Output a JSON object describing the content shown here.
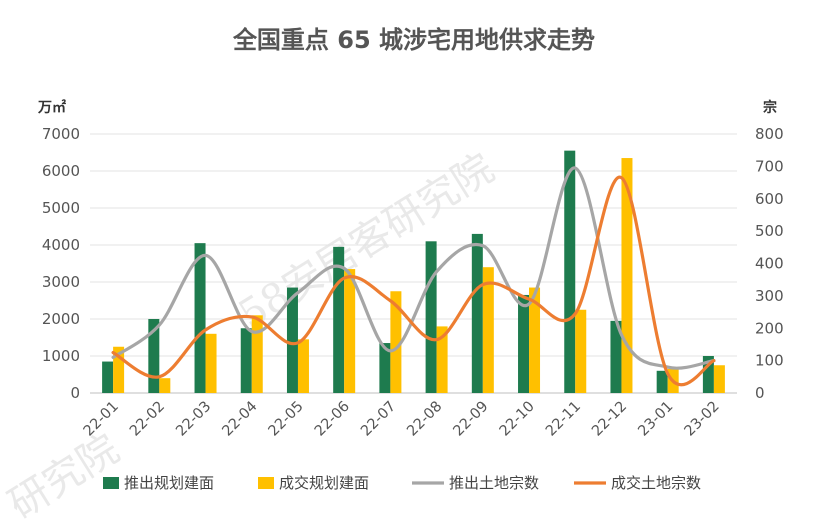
{
  "chart_data": {
    "type": "bar",
    "title": "全国重点 65 城涉宅用地供求走势",
    "categories": [
      "22-01",
      "22-02",
      "22-03",
      "22-04",
      "22-05",
      "22-06",
      "22-07",
      "22-08",
      "22-09",
      "22-10",
      "22-11",
      "22-12",
      "23-01",
      "23-02"
    ],
    "y_left": {
      "label": "万㎡",
      "ylim": [
        0,
        7000
      ],
      "ticks": [
        0,
        1000,
        2000,
        3000,
        4000,
        5000,
        6000,
        7000
      ]
    },
    "y_right": {
      "label": "宗",
      "ylim": [
        0,
        800
      ],
      "ticks": [
        0,
        100,
        200,
        300,
        400,
        500,
        600,
        700,
        800
      ]
    },
    "series": [
      {
        "name": "推出规划建面",
        "kind": "bar",
        "axis": "left",
        "color": "#1e7b4e",
        "values": [
          850,
          2000,
          4050,
          1750,
          2850,
          3950,
          1350,
          4100,
          4300,
          2650,
          6550,
          1950,
          600,
          1000
        ]
      },
      {
        "name": "成交规划建面",
        "kind": "bar",
        "axis": "left",
        "color": "#ffc000",
        "values": [
          1250,
          400,
          1600,
          2100,
          1450,
          3350,
          2750,
          1800,
          3400,
          2850,
          2250,
          6350,
          650,
          750
        ]
      },
      {
        "name": "推出土地宗数",
        "kind": "line",
        "axis": "right",
        "color": "#a6a6a6",
        "values": [
          110,
          210,
          425,
          190,
          310,
          385,
          130,
          375,
          455,
          275,
          695,
          180,
          80,
          100
        ]
      },
      {
        "name": "成交土地宗数",
        "kind": "line",
        "axis": "right",
        "color": "#ed7d31",
        "values": [
          125,
          50,
          195,
          235,
          155,
          355,
          285,
          165,
          335,
          290,
          245,
          665,
          60,
          100
        ]
      }
    ],
    "grid": true,
    "legend_position": "bottom"
  },
  "watermark": {
    "text": "58安居客研究院",
    "text_short": "研究院"
  }
}
